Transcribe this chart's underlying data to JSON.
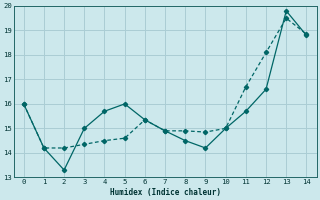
{
  "xlabel": "Humidex (Indice chaleur)",
  "bg_color": "#cce8ec",
  "grid_color": "#aacdd4",
  "line_color": "#006666",
  "xlim": [
    -0.5,
    14.5
  ],
  "ylim": [
    13,
    20
  ],
  "xticks": [
    0,
    1,
    2,
    3,
    4,
    5,
    6,
    7,
    8,
    9,
    10,
    11,
    12,
    13,
    14
  ],
  "yticks": [
    13,
    14,
    15,
    16,
    17,
    18,
    19,
    20
  ],
  "line1_x": [
    0,
    1,
    2,
    3,
    4,
    5,
    6,
    7,
    8,
    9,
    10,
    11,
    12,
    13,
    14
  ],
  "line1_y": [
    16.0,
    14.2,
    13.3,
    15.0,
    15.7,
    16.0,
    15.35,
    14.9,
    14.5,
    14.2,
    15.0,
    15.7,
    16.6,
    19.8,
    18.8
  ],
  "line2_x": [
    0,
    1,
    2,
    3,
    4,
    5,
    6,
    7,
    8,
    9,
    10,
    11,
    12,
    13,
    14
  ],
  "line2_y": [
    16.0,
    14.2,
    14.2,
    14.35,
    14.5,
    14.6,
    15.35,
    14.9,
    14.9,
    14.85,
    15.0,
    16.7,
    18.1,
    19.5,
    18.85
  ]
}
